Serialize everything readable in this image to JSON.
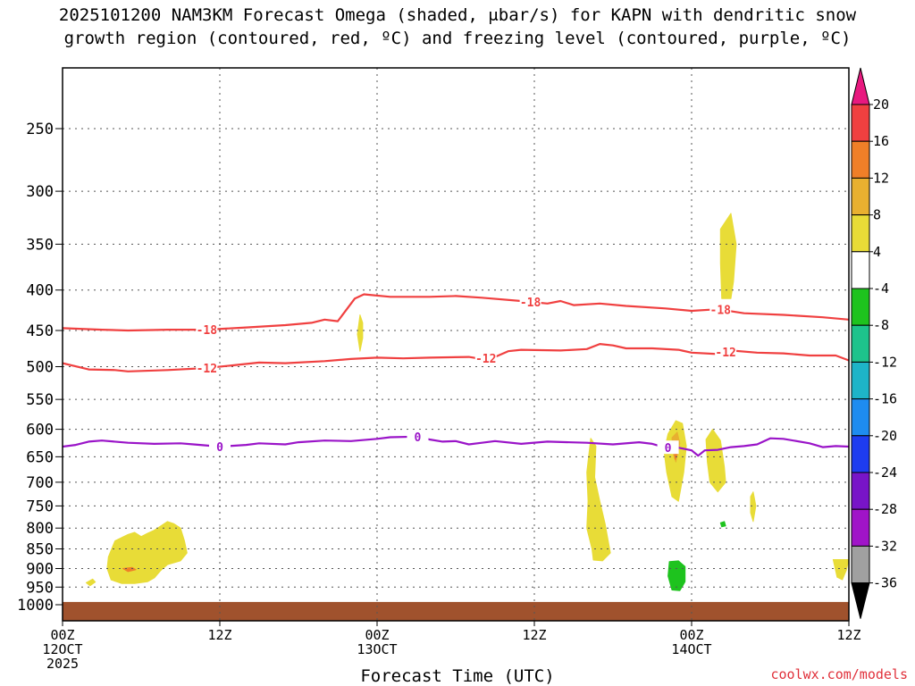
{
  "title_line1": "2025101200 NAM3KM Forecast Omega (shaded, μbar/s) for KAPN with dendritic snow",
  "title_line2": "growth region (contoured, red, ºC) and freezing level (contoured, purple, ºC)",
  "credit": "coolwx.com/models",
  "chart_data": {
    "type": "contour",
    "title": "2025101200 NAM3KM Forecast Omega (shaded, μbar/s) for KAPN with dendritic snow growth region (contoured, red, ºC) and freezing level (contoured, purple, ºC)",
    "xlabel": "Forecast Time (UTC)",
    "ylabel": "",
    "x_range_hours": [
      0,
      60
    ],
    "y_range_hPa": [
      1050,
      200
    ],
    "y_scale": "log-pressure",
    "y_ticks": [
      250,
      300,
      350,
      400,
      450,
      500,
      550,
      600,
      650,
      700,
      750,
      800,
      850,
      900,
      950,
      1000
    ],
    "x_ticks": [
      {
        "hour": 0,
        "lines": [
          "00Z",
          "12OCT",
          "2025"
        ]
      },
      {
        "hour": 12,
        "lines": [
          "12Z"
        ]
      },
      {
        "hour": 24,
        "lines": [
          "00Z",
          "13OCT"
        ]
      },
      {
        "hour": 36,
        "lines": [
          "12Z"
        ]
      },
      {
        "hour": 48,
        "lines": [
          "00Z",
          "14OCT"
        ]
      },
      {
        "hour": 60,
        "lines": [
          "12Z"
        ]
      }
    ],
    "grid": true,
    "colorbar": {
      "levels": [
        20,
        16,
        12,
        8,
        4,
        -4,
        -8,
        -12,
        -16,
        -20,
        -24,
        -28,
        -32,
        -36
      ],
      "colors": [
        "#e8197f",
        "#f04040",
        "#f07f28",
        "#e8b030",
        "#e8dc37",
        "#ffffff",
        "#1ec31e",
        "#1ec38c",
        "#1eb4c8",
        "#1e8cf0",
        "#1e3cf0",
        "#7814c8",
        "#a014c8",
        "#a0a0a0",
        "#000000"
      ]
    },
    "contours": [
      {
        "name": "dendritic -18C",
        "label": "-18",
        "color": "#f04040",
        "points": [
          [
            0,
            447
          ],
          [
            3,
            449
          ],
          [
            5,
            450
          ],
          [
            8,
            449
          ],
          [
            11,
            449
          ],
          [
            14,
            446
          ],
          [
            17,
            443
          ],
          [
            19,
            440
          ],
          [
            20,
            436
          ],
          [
            21,
            438
          ],
          [
            22.3,
            410
          ],
          [
            23,
            405
          ],
          [
            25,
            408
          ],
          [
            28,
            408
          ],
          [
            30,
            407
          ],
          [
            32,
            409
          ],
          [
            35,
            413
          ],
          [
            37,
            416
          ],
          [
            38,
            413
          ],
          [
            39,
            418
          ],
          [
            41,
            416
          ],
          [
            43,
            419
          ],
          [
            46,
            422
          ],
          [
            48,
            425
          ],
          [
            50,
            423
          ],
          [
            52,
            428
          ],
          [
            55,
            430
          ],
          [
            58,
            433
          ],
          [
            60,
            436
          ]
        ]
      },
      {
        "name": "dendritic -12C",
        "label": "-12",
        "color": "#f04040",
        "points": [
          [
            0,
            495
          ],
          [
            2,
            504
          ],
          [
            4,
            505
          ],
          [
            5,
            507
          ],
          [
            8,
            505
          ],
          [
            11,
            502
          ],
          [
            13,
            498
          ],
          [
            15,
            494
          ],
          [
            17,
            495
          ],
          [
            20,
            492
          ],
          [
            22,
            489
          ],
          [
            24,
            487
          ],
          [
            26,
            488
          ],
          [
            28,
            487
          ],
          [
            31,
            486
          ],
          [
            32,
            489
          ],
          [
            33,
            486
          ],
          [
            34,
            478
          ],
          [
            35,
            476
          ],
          [
            38,
            477
          ],
          [
            40,
            475
          ],
          [
            41,
            468
          ],
          [
            42,
            470
          ],
          [
            43,
            474
          ],
          [
            45,
            474
          ],
          [
            47,
            476
          ],
          [
            48,
            480
          ],
          [
            50,
            482
          ],
          [
            51,
            477
          ],
          [
            53,
            480
          ],
          [
            55,
            481
          ],
          [
            57,
            484
          ],
          [
            59,
            484
          ],
          [
            60,
            491
          ]
        ]
      },
      {
        "name": "freezing level 0C",
        "label": "0",
        "color": "#9a14c8",
        "points": [
          [
            0,
            631
          ],
          [
            1,
            628
          ],
          [
            2,
            622
          ],
          [
            3,
            620
          ],
          [
            5,
            624
          ],
          [
            7,
            626
          ],
          [
            9,
            625
          ],
          [
            10,
            627
          ],
          [
            12,
            631
          ],
          [
            14,
            628
          ],
          [
            15,
            625
          ],
          [
            17,
            627
          ],
          [
            18,
            623
          ],
          [
            20,
            620
          ],
          [
            22,
            621
          ],
          [
            24,
            617
          ],
          [
            25,
            614
          ],
          [
            27,
            613
          ],
          [
            28,
            618
          ],
          [
            29,
            622
          ],
          [
            30,
            621
          ],
          [
            31,
            627
          ],
          [
            32,
            624
          ],
          [
            33,
            621
          ],
          [
            35,
            626
          ],
          [
            37,
            622
          ],
          [
            40,
            624
          ],
          [
            42,
            627
          ],
          [
            44,
            623
          ],
          [
            45,
            626
          ],
          [
            46,
            633
          ],
          [
            47,
            633
          ],
          [
            48,
            638
          ],
          [
            48.5,
            648
          ],
          [
            49,
            638
          ],
          [
            50,
            637
          ],
          [
            51,
            632
          ],
          [
            52,
            630
          ],
          [
            53,
            627
          ],
          [
            54,
            616
          ],
          [
            55,
            617
          ],
          [
            57,
            625
          ],
          [
            58,
            632
          ],
          [
            59,
            630
          ],
          [
            60,
            631
          ]
        ]
      }
    ],
    "omega_shaded_regions": [
      {
        "level": "4-8",
        "color": "#e8dc37",
        "points": [
          [
            3.4,
            900
          ],
          [
            3.5,
            870
          ],
          [
            4,
            830
          ],
          [
            5,
            815
          ],
          [
            5.5,
            810
          ],
          [
            6,
            820
          ],
          [
            6.5,
            812
          ],
          [
            7,
            805
          ],
          [
            7.5,
            795
          ],
          [
            8,
            785
          ],
          [
            8.5,
            790
          ],
          [
            9,
            800
          ],
          [
            9.3,
            830
          ],
          [
            9.5,
            860
          ],
          [
            9,
            880
          ],
          [
            8,
            890
          ],
          [
            7.5,
            905
          ],
          [
            7,
            925
          ],
          [
            6.5,
            935
          ],
          [
            5.5,
            940
          ],
          [
            4.5,
            940
          ],
          [
            3.7,
            930
          ]
        ]
      },
      {
        "level": "4-8",
        "color": "#e8dc37",
        "points": [
          [
            1.8,
            938
          ],
          [
            2.3,
            928
          ],
          [
            2.5,
            936
          ],
          [
            2.1,
            946
          ]
        ]
      },
      {
        "level": "4-8",
        "color": "#e8dc37",
        "points": [
          [
            22.7,
            430
          ],
          [
            22.9,
            440
          ],
          [
            22.9,
            460
          ],
          [
            22.7,
            478
          ],
          [
            22.5,
            455
          ]
        ]
      },
      {
        "level": "4-8",
        "color": "#e8dc37",
        "points": [
          [
            40.3,
            616
          ],
          [
            40.7,
            630
          ],
          [
            40.6,
            690
          ],
          [
            41,
            740
          ],
          [
            41.4,
            790
          ],
          [
            41.8,
            860
          ],
          [
            41.2,
            880
          ],
          [
            40.5,
            878
          ],
          [
            40.4,
            850
          ],
          [
            40,
            800
          ],
          [
            40.1,
            740
          ],
          [
            40.0,
            680
          ]
        ]
      },
      {
        "level": "4-8",
        "color": "#e8dc37",
        "points": [
          [
            46.2,
            608
          ],
          [
            46.8,
            585
          ],
          [
            47.3,
            590
          ],
          [
            47.6,
            630
          ],
          [
            47.4,
            680
          ],
          [
            47,
            740
          ],
          [
            46.5,
            730
          ],
          [
            46.1,
            680
          ],
          [
            45.9,
            640
          ]
        ]
      },
      {
        "level": "4-8",
        "color": "#e8dc37",
        "points": [
          [
            49.1,
            618
          ],
          [
            49.6,
            600
          ],
          [
            50.2,
            620
          ],
          [
            50.5,
            670
          ],
          [
            50.6,
            700
          ],
          [
            50,
            720
          ],
          [
            49.4,
            700
          ],
          [
            49.2,
            660
          ]
        ]
      },
      {
        "level": "4-8",
        "color": "#e8dc37",
        "points": [
          [
            50.2,
            335
          ],
          [
            51,
            320
          ],
          [
            51.4,
            350
          ],
          [
            51.2,
            390
          ],
          [
            51,
            410
          ],
          [
            50.3,
            410
          ],
          [
            50.2,
            370
          ]
        ]
      },
      {
        "level": "4-8",
        "color": "#e8dc37",
        "points": [
          [
            52.5,
            730
          ],
          [
            52.7,
            720
          ],
          [
            52.9,
            750
          ],
          [
            52.7,
            785
          ],
          [
            52.5,
            765
          ]
        ]
      },
      {
        "level": "4-8",
        "color": "#e8dc37",
        "points": [
          [
            58.8,
            877
          ],
          [
            60,
            877
          ],
          [
            59.8,
            905
          ],
          [
            59.5,
            930
          ],
          [
            59.1,
            923
          ]
        ]
      },
      {
        "level": "8-12",
        "color": "#e8b030",
        "points": [
          [
            46.5,
            615
          ],
          [
            46.9,
            605
          ],
          [
            47.1,
            625
          ],
          [
            46.8,
            660
          ],
          [
            46.6,
            645
          ]
        ]
      },
      {
        "level": "12-16",
        "color": "#f07f28",
        "points": [
          [
            4.6,
            900
          ],
          [
            5.3,
            897
          ],
          [
            5.6,
            903
          ],
          [
            5.0,
            908
          ]
        ]
      },
      {
        "level": "12-16",
        "color": "#f07f28",
        "points": [
          [
            46.6,
            628
          ],
          [
            46.85,
            620
          ],
          [
            46.95,
            640
          ],
          [
            46.75,
            655
          ]
        ]
      },
      {
        "level": "-4 to -8",
        "color": "#1ec31e",
        "points": [
          [
            46.3,
            882
          ],
          [
            47,
            880
          ],
          [
            47.5,
            895
          ],
          [
            47.5,
            935
          ],
          [
            47.1,
            960
          ],
          [
            46.5,
            958
          ],
          [
            46.2,
            920
          ]
        ]
      },
      {
        "level": "-4 to -8",
        "color": "#1ec31e",
        "points": [
          [
            50.2,
            788
          ],
          [
            50.5,
            785
          ],
          [
            50.6,
            795
          ],
          [
            50.3,
            797
          ]
        ]
      }
    ],
    "ground": {
      "color": "#a0522d",
      "from_hPa": 1050,
      "to_hPa": 992
    }
  },
  "xlabel": "Forecast Time (UTC)"
}
